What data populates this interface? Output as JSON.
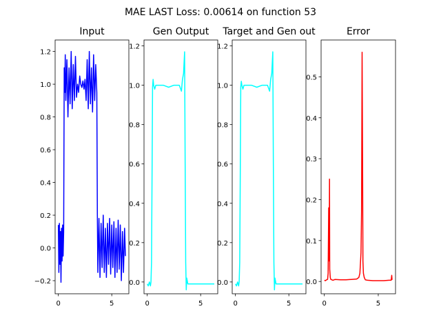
{
  "figure": {
    "suptitle": "MAE LAST Loss: 0.00614 on function 53"
  },
  "chart_data": [
    {
      "type": "line",
      "title": "Input",
      "xlim": [
        -0.3,
        6.6
      ],
      "ylim": [
        -0.28,
        1.27
      ],
      "xticks": [
        0,
        5
      ],
      "yticks": [
        -0.2,
        0.0,
        0.2,
        0.4,
        0.6,
        0.8,
        1.0,
        1.2
      ],
      "ytick_labels": [
        "−0.2",
        "0.0",
        "0.2",
        "0.4",
        "0.6",
        "0.8",
        "1.0",
        "1.2"
      ],
      "color": "#0000ff",
      "series": [
        {
          "x": [
            0.0,
            0.05,
            0.1,
            0.15,
            0.2,
            0.25,
            0.3,
            0.35,
            0.4,
            0.45,
            0.5,
            0.55,
            0.6,
            0.65,
            0.7,
            0.8,
            0.9,
            1.0,
            1.1,
            1.2,
            1.3,
            1.4,
            1.5,
            1.6,
            1.7,
            1.8,
            1.9,
            2.0,
            2.1,
            2.2,
            2.3,
            2.4,
            2.5,
            2.6,
            2.7,
            2.8,
            2.9,
            3.0,
            3.1,
            3.2,
            3.3,
            3.4,
            3.5,
            3.6,
            3.65,
            3.7,
            3.8,
            3.9,
            4.0,
            4.1,
            4.2,
            4.3,
            4.4,
            4.5,
            4.6,
            4.7,
            4.8,
            4.9,
            5.0,
            5.1,
            5.2,
            5.3,
            5.4,
            5.5,
            5.6,
            5.7,
            5.8,
            5.9,
            6.0,
            6.1,
            6.2,
            6.28
          ],
          "y": [
            0.14,
            -0.15,
            0.15,
            -0.1,
            0.1,
            -0.21,
            0.12,
            -0.08,
            0.14,
            -0.05,
            0.1,
            1.1,
            0.95,
            1.18,
            0.9,
            1.15,
            0.8,
            1.1,
            0.88,
            1.2,
            0.85,
            1.12,
            0.9,
            1.17,
            0.92,
            1.0,
            0.95,
            1.05,
            1.0,
            0.98,
            1.02,
            0.97,
            1.03,
            0.9,
            1.15,
            0.85,
            1.2,
            0.88,
            1.1,
            0.83,
            1.18,
            0.9,
            1.12,
            0.95,
            0.2,
            -0.15,
            0.18,
            -0.18,
            0.15,
            -0.12,
            0.2,
            -0.15,
            0.12,
            -0.18,
            0.15,
            -0.1,
            0.18,
            -0.16,
            0.14,
            -0.12,
            0.16,
            -0.18,
            0.12,
            -0.15,
            0.17,
            -0.13,
            0.14,
            -0.2,
            0.1,
            -0.15,
            0.12,
            -0.05
          ]
        }
      ]
    },
    {
      "type": "line",
      "title": "Gen Output",
      "xlim": [
        -0.3,
        6.6
      ],
      "ylim": [
        -0.06,
        1.23
      ],
      "xticks": [
        0,
        5
      ],
      "yticks": [
        0.0,
        0.2,
        0.4,
        0.6,
        0.8,
        1.0,
        1.2
      ],
      "ytick_labels": [
        "0.0",
        "0.2",
        "0.4",
        "0.6",
        "0.8",
        "1.0",
        "1.2"
      ],
      "color": "#00ffff",
      "series": [
        {
          "x": [
            0.0,
            0.1,
            0.2,
            0.3,
            0.35,
            0.4,
            0.45,
            0.5,
            0.55,
            0.6,
            0.7,
            0.8,
            1.0,
            1.5,
            2.0,
            2.5,
            3.0,
            3.2,
            3.3,
            3.4,
            3.45,
            3.5,
            3.55,
            3.6,
            3.65,
            3.7,
            3.8,
            4.0,
            4.5,
            5.0,
            5.5,
            6.0,
            6.28
          ],
          "y": [
            -0.01,
            -0.02,
            0.0,
            -0.02,
            0.0,
            0.1,
            0.5,
            0.99,
            1.03,
            1.0,
            0.98,
            1.0,
            1.0,
            1.0,
            0.99,
            1.0,
            1.0,
            0.97,
            1.03,
            1.06,
            1.12,
            1.17,
            0.6,
            0.1,
            -0.04,
            0.02,
            -0.01,
            -0.01,
            -0.01,
            -0.01,
            -0.01,
            -0.01,
            -0.01
          ]
        }
      ]
    },
    {
      "type": "line",
      "title": "Target and Gen out",
      "xlim": [
        -0.3,
        6.6
      ],
      "ylim": [
        -0.06,
        1.23
      ],
      "xticks": [
        0,
        5
      ],
      "yticks": [
        0.0,
        0.2,
        0.4,
        0.6,
        0.8,
        1.0,
        1.2
      ],
      "ytick_labels": [
        "0.0",
        "0.2",
        "0.4",
        "0.6",
        "0.8",
        "1.0",
        "1.2"
      ],
      "color": "#00ffff",
      "series": [
        {
          "x": [
            0.0,
            0.1,
            0.2,
            0.3,
            0.35,
            0.4,
            0.45,
            0.5,
            0.55,
            0.6,
            0.7,
            0.8,
            1.0,
            1.5,
            2.0,
            2.5,
            3.0,
            3.2,
            3.3,
            3.4,
            3.45,
            3.5,
            3.55,
            3.6,
            3.65,
            3.7,
            3.8,
            4.0,
            4.5,
            5.0,
            5.5,
            6.0,
            6.28
          ],
          "y": [
            -0.01,
            -0.02,
            0.0,
            -0.02,
            0.0,
            0.1,
            0.5,
            0.99,
            1.02,
            1.0,
            0.98,
            1.0,
            1.0,
            1.0,
            0.99,
            1.0,
            1.0,
            0.97,
            1.03,
            1.06,
            1.12,
            1.17,
            0.6,
            0.1,
            -0.04,
            0.02,
            -0.01,
            -0.01,
            -0.01,
            -0.01,
            -0.01,
            -0.01,
            -0.01
          ]
        }
      ]
    },
    {
      "type": "line",
      "title": "Error",
      "xlim": [
        -0.3,
        6.6
      ],
      "ylim": [
        -0.03,
        0.59
      ],
      "xticks": [
        0,
        5
      ],
      "yticks": [
        0.0,
        0.1,
        0.2,
        0.3,
        0.4,
        0.5
      ],
      "ytick_labels": [
        "0.0",
        "0.1",
        "0.2",
        "0.3",
        "0.4",
        "0.5"
      ],
      "color": "#ff0000",
      "series": [
        {
          "x": [
            0.0,
            0.1,
            0.2,
            0.3,
            0.35,
            0.4,
            0.45,
            0.48,
            0.5,
            0.55,
            0.6,
            0.7,
            0.8,
            1.0,
            1.5,
            2.0,
            2.5,
            3.0,
            3.2,
            3.3,
            3.4,
            3.45,
            3.5,
            3.55,
            3.58,
            3.62,
            3.7,
            3.8,
            4.0,
            4.5,
            5.0,
            5.5,
            6.0,
            6.2,
            6.25,
            6.28
          ],
          "y": [
            0.003,
            0.002,
            0.004,
            0.005,
            0.02,
            0.18,
            0.05,
            0.25,
            0.03,
            0.01,
            0.005,
            0.004,
            0.003,
            0.005,
            0.004,
            0.004,
            0.005,
            0.006,
            0.01,
            0.02,
            0.07,
            0.17,
            0.56,
            0.25,
            0.05,
            0.02,
            0.01,
            0.004,
            0.003,
            0.002,
            0.002,
            0.002,
            0.003,
            0.003,
            0.015,
            0.004
          ]
        }
      ]
    }
  ]
}
